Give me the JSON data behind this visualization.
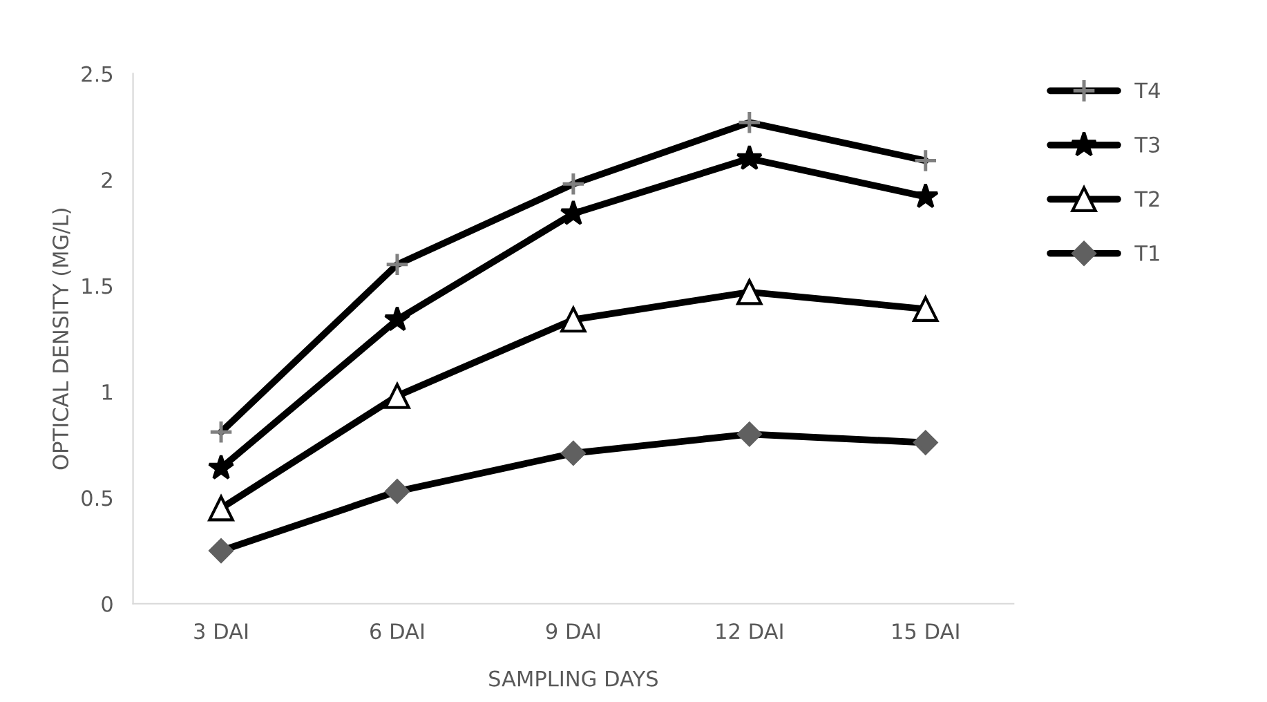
{
  "chart_data": {
    "type": "line",
    "xlabel": "SAMPLING DAYS",
    "ylabel": "OPTICAL DENSITY (MG/L)",
    "categories": [
      "3 DAI",
      "6 DAI",
      "9 DAI",
      "12 DAI",
      "15 DAI"
    ],
    "ylim": [
      0,
      2.5
    ],
    "yticks": [
      0,
      0.5,
      1,
      1.5,
      2,
      2.5
    ],
    "grid": false,
    "legend": "right",
    "line_style": "solid",
    "series": [
      {
        "name": "T4",
        "color": "#000000",
        "marker": "cross",
        "values": [
          0.81,
          1.6,
          1.98,
          2.27,
          2.09
        ]
      },
      {
        "name": "T3",
        "color": "#000000",
        "marker": "star",
        "values": [
          0.64,
          1.34,
          1.84,
          2.1,
          1.92
        ]
      },
      {
        "name": "T2",
        "color": "#000000",
        "marker": "triangle",
        "values": [
          0.45,
          0.98,
          1.34,
          1.47,
          1.39
        ]
      },
      {
        "name": "T1",
        "color": "#000000",
        "marker": "diamond",
        "values": [
          0.25,
          0.53,
          0.71,
          0.8,
          0.76
        ]
      }
    ]
  }
}
